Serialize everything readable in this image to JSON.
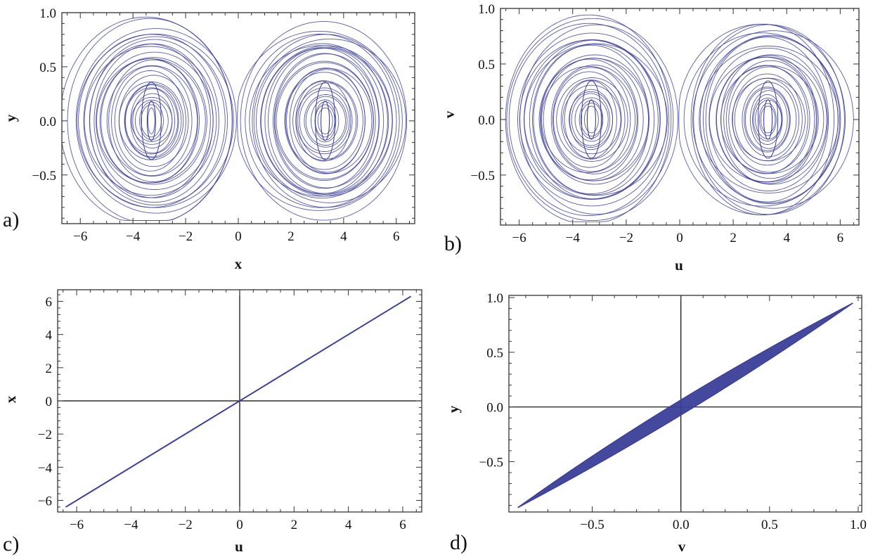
{
  "colors": {
    "trace": "#3b3f99",
    "frame": "#333333",
    "text": "#111111"
  },
  "chart_data": [
    {
      "id": "a",
      "panel_label": "a)",
      "type": "line",
      "description_kind": "chaotic double-scroll attractor projection",
      "xlabel": "x",
      "ylabel": "y",
      "xlim": [
        -6.7,
        6.7
      ],
      "ylim": [
        -0.95,
        1.0
      ],
      "xticks": [
        -6,
        -4,
        -2,
        0,
        2,
        4,
        6
      ],
      "xtick_labels": [
        "−6",
        "−4",
        "−2",
        "0",
        "2",
        "4",
        "6"
      ],
      "yticks": [
        -0.5,
        0.0,
        0.5,
        1.0
      ],
      "ytick_labels": [
        "−0.5",
        "0.0",
        "0.5",
        "1.0"
      ],
      "attractor": {
        "left_center": [
          -3.3,
          0.0
        ],
        "right_center": [
          3.3,
          0.0
        ],
        "x_extent": [
          -6.4,
          6.4
        ],
        "y_extent": [
          -0.92,
          0.97
        ]
      },
      "series": [
        {
          "color": "#3b3f99"
        }
      ]
    },
    {
      "id": "b",
      "panel_label": "b)",
      "type": "line",
      "description_kind": "chaotic double-scroll attractor projection",
      "xlabel": "u",
      "ylabel": "v",
      "xlim": [
        -6.7,
        6.7
      ],
      "ylim": [
        -0.95,
        1.0
      ],
      "xticks": [
        -6,
        -4,
        -2,
        0,
        2,
        4,
        6
      ],
      "xtick_labels": [
        "−6",
        "−4",
        "−2",
        "0",
        "2",
        "4",
        "6"
      ],
      "yticks": [
        -0.5,
        0.0,
        0.5,
        1.0
      ],
      "ytick_labels": [
        "−0.5",
        "0.0",
        "0.5",
        "1.0"
      ],
      "attractor": {
        "left_center": [
          -3.3,
          0.0
        ],
        "right_center": [
          3.3,
          0.0
        ],
        "x_extent": [
          -6.4,
          6.4
        ],
        "y_extent": [
          -0.92,
          0.97
        ]
      },
      "series": [
        {
          "color": "#3b3f99"
        }
      ]
    },
    {
      "id": "c",
      "panel_label": "c)",
      "type": "line",
      "xlabel": "u",
      "ylabel": "x",
      "xlim": [
        -6.7,
        6.7
      ],
      "ylim": [
        -6.7,
        6.7
      ],
      "xticks": [
        -6,
        -4,
        -2,
        0,
        2,
        4,
        6
      ],
      "xtick_labels": [
        "−6",
        "−4",
        "−2",
        "0",
        "2",
        "4",
        "6"
      ],
      "yticks": [
        -6,
        -4,
        -2,
        0,
        2,
        4,
        6
      ],
      "ytick_labels": [
        "−6",
        "−4",
        "−2",
        "0",
        "2",
        "4",
        "6"
      ],
      "zero_axes": true,
      "series": [
        {
          "color": "#3b3f99",
          "x": [
            -6.4,
            6.3
          ],
          "y": [
            -6.4,
            6.3
          ]
        }
      ]
    },
    {
      "id": "d",
      "panel_label": "d)",
      "type": "line",
      "xlabel": "v",
      "ylabel": "y",
      "xlim": [
        -0.97,
        1.02
      ],
      "ylim": [
        -0.96,
        1.02
      ],
      "xticks": [
        -0.5,
        0.0,
        0.5,
        1.0
      ],
      "xtick_labels": [
        "−0.5",
        "0.0",
        "0.5",
        "1.0"
      ],
      "yticks": [
        -0.5,
        0.0,
        0.5,
        1.0
      ],
      "ytick_labels": [
        "−0.5",
        "0.0",
        "0.5",
        "1.0"
      ],
      "zero_axes": true,
      "band": {
        "from": [
          -0.92,
          -0.92
        ],
        "to": [
          0.97,
          0.95
        ],
        "half_width": 0.07
      },
      "series": [
        {
          "color": "#3b3f99"
        }
      ]
    }
  ]
}
